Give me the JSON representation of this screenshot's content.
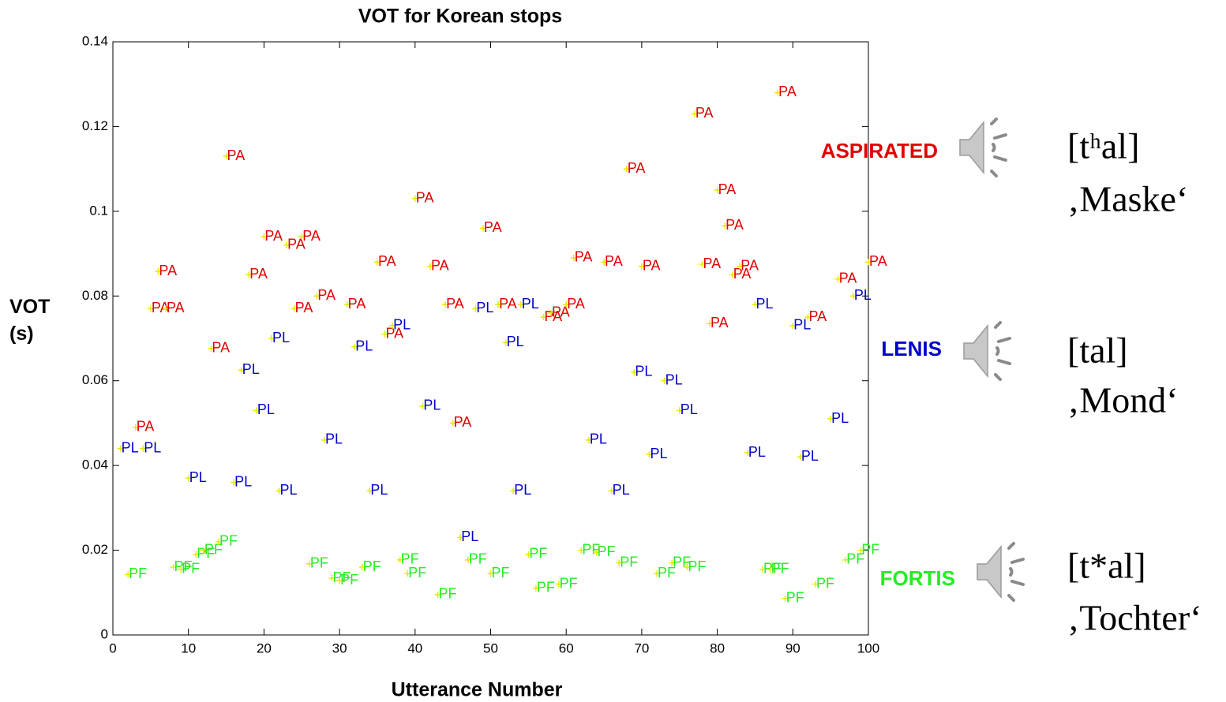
{
  "chart_data": {
    "type": "scatter",
    "title": "VOT for Korean stops",
    "x_label": "Utterance Number",
    "y_label": "VOT (s)",
    "xlim": [
      0,
      100
    ],
    "ylim": [
      0,
      0.14
    ],
    "xticks": [
      0,
      10,
      20,
      30,
      40,
      50,
      60,
      70,
      80,
      90,
      100
    ],
    "yticks": [
      0,
      0.02,
      0.04,
      0.06,
      0.08,
      0.1,
      0.12,
      0.14
    ],
    "marker_color": "#e8e800",
    "series": [
      {
        "name": "PA",
        "color": "#e00000",
        "label": "ASPIRATED",
        "transcription": "[tʰal]",
        "gloss": "‚Maske‘",
        "x": [
          15,
          6,
          5,
          7,
          3,
          13,
          18,
          20,
          23,
          25,
          24,
          27,
          31,
          35,
          36,
          40,
          42,
          44,
          45,
          49,
          51,
          57,
          58,
          60,
          61,
          65,
          68,
          70,
          77,
          78,
          79,
          80,
          81,
          82,
          83,
          88,
          92,
          96,
          100
        ],
        "values": [
          0.113,
          0.0858,
          0.077,
          0.077,
          0.049,
          0.0676,
          0.085,
          0.094,
          0.092,
          0.094,
          0.077,
          0.08,
          0.078,
          0.088,
          0.071,
          0.103,
          0.087,
          0.078,
          0.05,
          0.096,
          0.078,
          0.075,
          0.076,
          0.078,
          0.089,
          0.088,
          0.11,
          0.087,
          0.123,
          0.0875,
          0.0735,
          0.105,
          0.0966,
          0.085,
          0.087,
          0.128,
          0.075,
          0.084,
          0.088
        ]
      },
      {
        "name": "PL",
        "color": "#0000cc",
        "label": "LENIS",
        "transcription": "[tal]",
        "gloss": "‚Mond‘",
        "x": [
          1,
          4,
          10,
          16,
          17,
          19,
          21,
          22,
          28,
          32,
          34,
          37,
          41,
          46,
          48,
          52,
          53,
          54,
          63,
          66,
          69,
          71,
          73,
          75,
          84,
          85,
          90,
          91,
          95,
          98
        ],
        "values": [
          0.044,
          0.044,
          0.037,
          0.036,
          0.0625,
          0.053,
          0.07,
          0.034,
          0.046,
          0.068,
          0.034,
          0.073,
          0.054,
          0.023,
          0.077,
          0.069,
          0.034,
          0.078,
          0.046,
          0.034,
          0.062,
          0.0426,
          0.06,
          0.053,
          0.043,
          0.078,
          0.073,
          0.042,
          0.051,
          0.08
        ]
      },
      {
        "name": "PF",
        "color": "#22ee22",
        "label": "FORTIS",
        "transcription": "[t*al]",
        "gloss": "‚Tochter‘",
        "x": [
          2,
          8,
          9,
          11,
          12,
          14,
          26,
          29,
          30,
          33,
          38,
          39,
          43,
          47,
          50,
          55,
          56,
          59,
          62,
          64,
          67,
          72,
          74,
          76,
          86,
          87,
          89,
          93,
          97,
          99
        ],
        "values": [
          0.0143,
          0.016,
          0.0155,
          0.019,
          0.02,
          0.022,
          0.0168,
          0.0134,
          0.0128,
          0.016,
          0.0177,
          0.0145,
          0.0095,
          0.0177,
          0.0145,
          0.019,
          0.011,
          0.012,
          0.02,
          0.0195,
          0.017,
          0.0145,
          0.017,
          0.016,
          0.0155,
          0.0155,
          0.0086,
          0.012,
          0.0177,
          0.02
        ]
      }
    ]
  }
}
